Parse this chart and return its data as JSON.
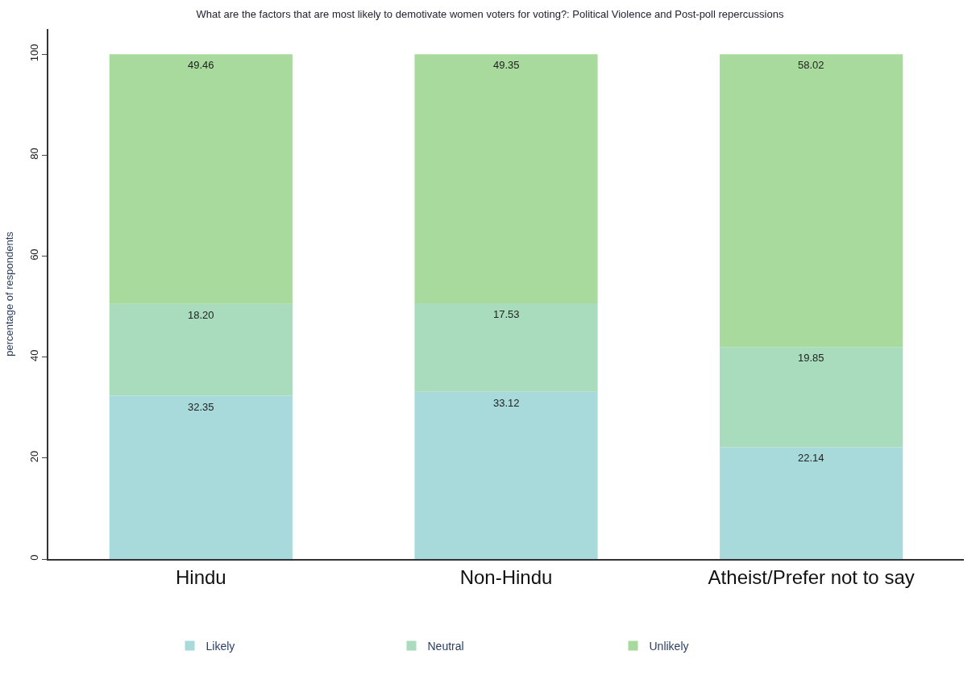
{
  "chart_data": {
    "type": "bar",
    "stacked": true,
    "title": "What are the factors that are most likely to demotivate women voters for voting?: Political Violence and Post-poll repercussions",
    "ylabel": "percentage of respondents",
    "categories": [
      "Hindu",
      "Non-Hindu",
      "Atheist/Prefer not to say"
    ],
    "series": [
      {
        "name": "Likely",
        "color": "#a8dadc",
        "values": [
          32.35,
          33.12,
          22.14
        ],
        "value_labels": [
          "32.35",
          "33.12",
          "22.14"
        ]
      },
      {
        "name": "Neutral",
        "color": "#a8dcbc",
        "values": [
          18.2,
          17.53,
          19.85
        ],
        "value_labels": [
          "18.20",
          "17.53",
          "19.85"
        ]
      },
      {
        "name": "Unlikely",
        "color": "#a8da9e",
        "values": [
          49.46,
          49.35,
          58.02
        ],
        "value_labels": [
          "49.46",
          "49.35",
          "58.02"
        ]
      }
    ],
    "ylim": [
      0,
      105
    ],
    "yticks": [
      0,
      20,
      40,
      60,
      80,
      100
    ],
    "legend": "bottom"
  }
}
